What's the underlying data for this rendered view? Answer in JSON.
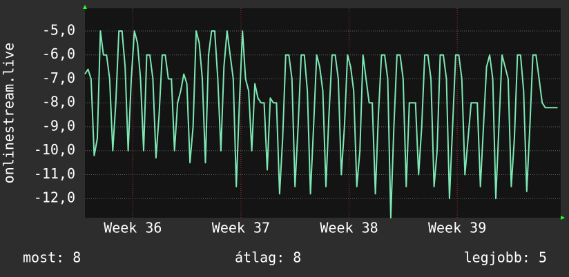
{
  "chart_data": {
    "type": "line",
    "y_label": "onlinestream.live",
    "color": "#7de8b4",
    "grid": true,
    "ylim": [
      -12.8,
      -4.05
    ],
    "yticks": [
      {
        "value": -5,
        "label": "-5,0"
      },
      {
        "value": -6,
        "label": "-6,0"
      },
      {
        "value": -7,
        "label": "-7,0"
      },
      {
        "value": -8,
        "label": "-8,0"
      },
      {
        "value": -9,
        "label": "-9,0"
      },
      {
        "value": -10,
        "label": "-10,0"
      },
      {
        "value": -11,
        "label": "-11,0"
      },
      {
        "value": -12,
        "label": "-12,0"
      }
    ],
    "xlim": [
      0,
      154
    ],
    "xticks": [
      {
        "value": 15.5,
        "label": "Week 36"
      },
      {
        "value": 50.5,
        "label": "Week 37"
      },
      {
        "value": 85.5,
        "label": "Week 38"
      },
      {
        "value": 120.5,
        "label": "Week 39"
      }
    ],
    "values": [
      -6.8,
      -6.6,
      -7.0,
      -10.2,
      -9.5,
      -5.0,
      -6.0,
      -6.0,
      -7.0,
      -10.0,
      -8.0,
      -5.0,
      -5.0,
      -6.5,
      -10.0,
      -7.0,
      -5.0,
      -5.5,
      -7.0,
      -10.0,
      -6.0,
      -6.0,
      -7.0,
      -10.3,
      -8.5,
      -6.0,
      -6.0,
      -7.0,
      -7.0,
      -10.0,
      -8.0,
      -7.5,
      -6.8,
      -7.2,
      -10.5,
      -9.0,
      -5.0,
      -5.5,
      -7.0,
      -10.5,
      -6.0,
      -5.0,
      -5.0,
      -7.0,
      -10.0,
      -6.5,
      -5.0,
      -6.0,
      -7.0,
      -11.5,
      -8.0,
      -5.0,
      -7.0,
      -7.5,
      -10.0,
      -7.2,
      -7.8,
      -8.0,
      -8.0,
      -10.8,
      -7.8,
      -8.0,
      -8.0,
      -11.8,
      -9.5,
      -6.0,
      -6.0,
      -7.0,
      -11.5,
      -9.0,
      -6.0,
      -6.0,
      -7.5,
      -11.8,
      -9.0,
      -6.0,
      -6.5,
      -7.5,
      -11.5,
      -8.5,
      -6.0,
      -6.0,
      -7.0,
      -11.0,
      -9.0,
      -6.0,
      -6.5,
      -7.5,
      -11.5,
      -10.0,
      -6.0,
      -7.0,
      -8.0,
      -8.0,
      -11.8,
      -8.5,
      -6.0,
      -6.0,
      -7.0,
      -12.8,
      -9.0,
      -6.0,
      -6.0,
      -7.0,
      -11.5,
      -8.0,
      -8.0,
      -8.0,
      -11.0,
      -9.0,
      -6.0,
      -6.0,
      -7.0,
      -11.5,
      -10.0,
      -6.0,
      -6.0,
      -7.0,
      -12.0,
      -9.0,
      -6.0,
      -6.0,
      -7.0,
      -11.0,
      -9.5,
      -8.0,
      -8.0,
      -8.0,
      -11.5,
      -9.0,
      -6.5,
      -6.0,
      -7.0,
      -12.0,
      -9.0,
      -6.0,
      -6.5,
      -7.0,
      -11.5,
      -9.5,
      -6.0,
      -6.0,
      -7.5,
      -11.7,
      -9.0,
      -6.0,
      -6.0,
      -7.0,
      -8.0,
      -8.2,
      -8.2,
      -8.2,
      -8.2,
      -8.2
    ],
    "stats": [
      "most: 8",
      "átlag: 8",
      "legjobb: 5"
    ]
  }
}
